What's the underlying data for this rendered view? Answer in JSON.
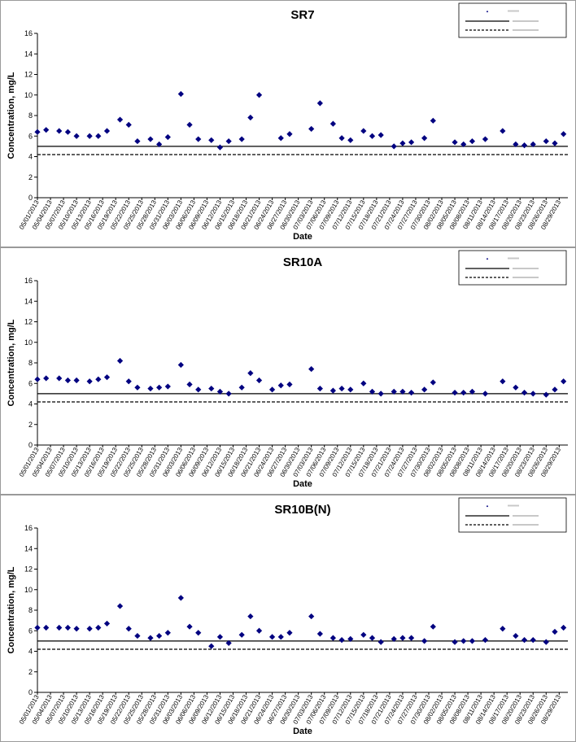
{
  "chart_data": [
    {
      "type": "scatter",
      "title": "SR7",
      "xlabel": "Date",
      "ylabel": "Concentration, mg/L",
      "ylim": [
        0,
        16
      ],
      "yticks": [
        "0",
        "2",
        "4",
        "6",
        "8",
        "10",
        "12",
        "14",
        "16"
      ],
      "xlim": [
        "05/01/2013",
        "08/31/2013"
      ],
      "xticks": [
        "05/01/2013",
        "05/04/2013",
        "05/07/2013",
        "05/10/2013",
        "05/13/2013",
        "05/16/2013",
        "05/19/2013",
        "05/22/2013",
        "05/25/2013",
        "05/28/2013",
        "05/31/2013",
        "06/03/2013",
        "06/06/2013",
        "06/09/2013",
        "06/12/2013",
        "06/15/2013",
        "06/18/2013",
        "06/21/2013",
        "06/24/2013",
        "06/27/2013",
        "06/30/2013",
        "07/03/2013",
        "07/06/2013",
        "07/09/2013",
        "07/12/2013",
        "07/15/2013",
        "07/18/2013",
        "07/21/2013",
        "07/24/2013",
        "07/27/2013",
        "07/30/2013",
        "08/02/2013",
        "08/05/2013",
        "08/08/2013",
        "08/11/2013",
        "08/14/2013",
        "08/17/2013",
        "08/20/2013",
        "08/23/2013",
        "08/26/2013",
        "08/29/2013"
      ],
      "grid": false,
      "legend_position": "top-right",
      "marker_color": "#000080",
      "reference_lines": [
        {
          "y": 5.0,
          "style": "solid"
        },
        {
          "y": 4.2,
          "style": "dashed"
        }
      ],
      "points": [
        {
          "x": "05/01/2013",
          "y": 6.4
        },
        {
          "x": "05/03/2013",
          "y": 6.6
        },
        {
          "x": "05/06/2013",
          "y": 6.5
        },
        {
          "x": "05/08/2013",
          "y": 6.4
        },
        {
          "x": "05/10/2013",
          "y": 6.0
        },
        {
          "x": "05/13/2013",
          "y": 6.0
        },
        {
          "x": "05/15/2013",
          "y": 6.0
        },
        {
          "x": "05/17/2013",
          "y": 6.5
        },
        {
          "x": "05/20/2013",
          "y": 7.6
        },
        {
          "x": "05/22/2013",
          "y": 7.1
        },
        {
          "x": "05/24/2013",
          "y": 5.5
        },
        {
          "x": "05/27/2013",
          "y": 5.7
        },
        {
          "x": "05/29/2013",
          "y": 5.2
        },
        {
          "x": "05/31/2013",
          "y": 5.9
        },
        {
          "x": "06/03/2013",
          "y": 10.1
        },
        {
          "x": "06/05/2013",
          "y": 7.1
        },
        {
          "x": "06/07/2013",
          "y": 5.7
        },
        {
          "x": "06/10/2013",
          "y": 5.6
        },
        {
          "x": "06/12/2013",
          "y": 4.9
        },
        {
          "x": "06/14/2013",
          "y": 5.5
        },
        {
          "x": "06/17/2013",
          "y": 5.7
        },
        {
          "x": "06/19/2013",
          "y": 7.8
        },
        {
          "x": "06/21/2013",
          "y": 10.0
        },
        {
          "x": "06/26/2013",
          "y": 5.8
        },
        {
          "x": "06/28/2013",
          "y": 6.2
        },
        {
          "x": "07/03/2013",
          "y": 6.7
        },
        {
          "x": "07/05/2013",
          "y": 9.2
        },
        {
          "x": "07/08/2013",
          "y": 7.2
        },
        {
          "x": "07/10/2013",
          "y": 5.8
        },
        {
          "x": "07/12/2013",
          "y": 5.6
        },
        {
          "x": "07/15/2013",
          "y": 6.5
        },
        {
          "x": "07/17/2013",
          "y": 6.0
        },
        {
          "x": "07/19/2013",
          "y": 6.1
        },
        {
          "x": "07/22/2013",
          "y": 5.0
        },
        {
          "x": "07/24/2013",
          "y": 5.3
        },
        {
          "x": "07/26/2013",
          "y": 5.4
        },
        {
          "x": "07/29/2013",
          "y": 5.8
        },
        {
          "x": "07/31/2013",
          "y": 7.5
        },
        {
          "x": "08/05/2013",
          "y": 5.4
        },
        {
          "x": "08/07/2013",
          "y": 5.2
        },
        {
          "x": "08/09/2013",
          "y": 5.5
        },
        {
          "x": "08/12/2013",
          "y": 5.7
        },
        {
          "x": "08/16/2013",
          "y": 6.5
        },
        {
          "x": "08/19/2013",
          "y": 5.2
        },
        {
          "x": "08/21/2013",
          "y": 5.1
        },
        {
          "x": "08/23/2013",
          "y": 5.2
        },
        {
          "x": "08/26/2013",
          "y": 5.5
        },
        {
          "x": "08/28/2013",
          "y": 5.3
        },
        {
          "x": "08/30/2013",
          "y": 6.2
        }
      ]
    },
    {
      "type": "scatter",
      "title": "SR10A",
      "xlabel": "Date",
      "ylabel": "Concentration, mg/L",
      "ylim": [
        0,
        16
      ],
      "yticks": [
        "0",
        "2",
        "4",
        "6",
        "8",
        "10",
        "12",
        "14",
        "16"
      ],
      "xlim": [
        "05/01/2013",
        "08/31/2013"
      ],
      "xticks": [
        "05/01/2013",
        "05/04/2013",
        "05/07/2013",
        "05/10/2013",
        "05/13/2013",
        "05/16/2013",
        "05/19/2013",
        "05/22/2013",
        "05/25/2013",
        "05/28/2013",
        "05/31/2013",
        "06/03/2013",
        "06/06/2013",
        "06/09/2013",
        "06/12/2013",
        "06/15/2013",
        "06/18/2013",
        "06/21/2013",
        "06/24/2013",
        "06/27/2013",
        "06/30/2013",
        "07/03/2013",
        "07/06/2013",
        "07/09/2013",
        "07/12/2013",
        "07/15/2013",
        "07/18/2013",
        "07/21/2013",
        "07/24/2013",
        "07/27/2013",
        "07/30/2013",
        "08/02/2013",
        "08/05/2013",
        "08/08/2013",
        "08/11/2013",
        "08/14/2013",
        "08/17/2013",
        "08/20/2013",
        "08/23/2013",
        "08/26/2013",
        "08/29/2013"
      ],
      "grid": false,
      "legend_position": "top-right",
      "marker_color": "#000080",
      "reference_lines": [
        {
          "y": 5.0,
          "style": "solid"
        },
        {
          "y": 4.2,
          "style": "dashed"
        }
      ],
      "points": [
        {
          "x": "05/01/2013",
          "y": 6.4
        },
        {
          "x": "05/03/2013",
          "y": 6.5
        },
        {
          "x": "05/06/2013",
          "y": 6.5
        },
        {
          "x": "05/08/2013",
          "y": 6.3
        },
        {
          "x": "05/10/2013",
          "y": 6.3
        },
        {
          "x": "05/13/2013",
          "y": 6.2
        },
        {
          "x": "05/15/2013",
          "y": 6.4
        },
        {
          "x": "05/17/2013",
          "y": 6.6
        },
        {
          "x": "05/20/2013",
          "y": 8.2
        },
        {
          "x": "05/22/2013",
          "y": 6.2
        },
        {
          "x": "05/24/2013",
          "y": 5.6
        },
        {
          "x": "05/27/2013",
          "y": 5.5
        },
        {
          "x": "05/29/2013",
          "y": 5.6
        },
        {
          "x": "05/31/2013",
          "y": 5.7
        },
        {
          "x": "06/03/2013",
          "y": 7.8
        },
        {
          "x": "06/05/2013",
          "y": 5.9
        },
        {
          "x": "06/07/2013",
          "y": 5.4
        },
        {
          "x": "06/10/2013",
          "y": 5.5
        },
        {
          "x": "06/12/2013",
          "y": 5.2
        },
        {
          "x": "06/14/2013",
          "y": 5.0
        },
        {
          "x": "06/17/2013",
          "y": 5.6
        },
        {
          "x": "06/19/2013",
          "y": 7.0
        },
        {
          "x": "06/21/2013",
          "y": 6.3
        },
        {
          "x": "06/24/2013",
          "y": 5.4
        },
        {
          "x": "06/26/2013",
          "y": 5.8
        },
        {
          "x": "06/28/2013",
          "y": 5.9
        },
        {
          "x": "07/03/2013",
          "y": 7.4
        },
        {
          "x": "07/05/2013",
          "y": 5.5
        },
        {
          "x": "07/08/2013",
          "y": 5.3
        },
        {
          "x": "07/10/2013",
          "y": 5.5
        },
        {
          "x": "07/12/2013",
          "y": 5.4
        },
        {
          "x": "07/15/2013",
          "y": 6.0
        },
        {
          "x": "07/17/2013",
          "y": 5.2
        },
        {
          "x": "07/19/2013",
          "y": 5.0
        },
        {
          "x": "07/22/2013",
          "y": 5.2
        },
        {
          "x": "07/24/2013",
          "y": 5.2
        },
        {
          "x": "07/26/2013",
          "y": 5.1
        },
        {
          "x": "07/29/2013",
          "y": 5.4
        },
        {
          "x": "07/31/2013",
          "y": 6.1
        },
        {
          "x": "08/05/2013",
          "y": 5.1
        },
        {
          "x": "08/07/2013",
          "y": 5.1
        },
        {
          "x": "08/09/2013",
          "y": 5.2
        },
        {
          "x": "08/12/2013",
          "y": 5.0
        },
        {
          "x": "08/16/2013",
          "y": 6.2
        },
        {
          "x": "08/19/2013",
          "y": 5.6
        },
        {
          "x": "08/21/2013",
          "y": 5.1
        },
        {
          "x": "08/23/2013",
          "y": 5.0
        },
        {
          "x": "08/26/2013",
          "y": 4.9
        },
        {
          "x": "08/28/2013",
          "y": 5.4
        },
        {
          "x": "08/30/2013",
          "y": 6.2
        }
      ]
    },
    {
      "type": "scatter",
      "title": "SR10B(N)",
      "xlabel": "Date",
      "ylabel": "Concentration, mg/L",
      "ylim": [
        0,
        16
      ],
      "yticks": [
        "0",
        "2",
        "4",
        "6",
        "8",
        "10",
        "12",
        "14",
        "16"
      ],
      "xlim": [
        "05/01/2013",
        "08/31/2013"
      ],
      "xticks": [
        "05/01/2013",
        "05/04/2013",
        "05/07/2013",
        "05/10/2013",
        "05/13/2013",
        "05/16/2013",
        "05/19/2013",
        "05/22/2013",
        "05/25/2013",
        "05/28/2013",
        "05/31/2013",
        "06/03/2013",
        "06/06/2013",
        "06/09/2013",
        "06/12/2013",
        "06/15/2013",
        "06/18/2013",
        "06/21/2013",
        "06/24/2013",
        "06/27/2013",
        "06/30/2013",
        "07/03/2013",
        "07/06/2013",
        "07/09/2013",
        "07/12/2013",
        "07/15/2013",
        "07/18/2013",
        "07/21/2013",
        "07/24/2013",
        "07/27/2013",
        "07/30/2013",
        "08/02/2013",
        "08/05/2013",
        "08/08/2013",
        "08/11/2013",
        "08/14/2013",
        "08/17/2013",
        "08/20/2013",
        "08/23/2013",
        "08/26/2013",
        "08/29/2013"
      ],
      "grid": false,
      "legend_position": "top-right",
      "marker_color": "#000080",
      "reference_lines": [
        {
          "y": 5.0,
          "style": "solid"
        },
        {
          "y": 4.2,
          "style": "dashed"
        }
      ],
      "points": [
        {
          "x": "05/01/2013",
          "y": 6.3
        },
        {
          "x": "05/03/2013",
          "y": 6.3
        },
        {
          "x": "05/06/2013",
          "y": 6.3
        },
        {
          "x": "05/08/2013",
          "y": 6.3
        },
        {
          "x": "05/10/2013",
          "y": 6.2
        },
        {
          "x": "05/13/2013",
          "y": 6.2
        },
        {
          "x": "05/15/2013",
          "y": 6.3
        },
        {
          "x": "05/17/2013",
          "y": 6.7
        },
        {
          "x": "05/20/2013",
          "y": 8.4
        },
        {
          "x": "05/22/2013",
          "y": 6.2
        },
        {
          "x": "05/24/2013",
          "y": 5.5
        },
        {
          "x": "05/27/2013",
          "y": 5.3
        },
        {
          "x": "05/29/2013",
          "y": 5.5
        },
        {
          "x": "05/31/2013",
          "y": 5.8
        },
        {
          "x": "06/03/2013",
          "y": 9.2
        },
        {
          "x": "06/05/2013",
          "y": 6.4
        },
        {
          "x": "06/07/2013",
          "y": 5.8
        },
        {
          "x": "06/10/2013",
          "y": 4.5
        },
        {
          "x": "06/12/2013",
          "y": 5.4
        },
        {
          "x": "06/14/2013",
          "y": 4.8
        },
        {
          "x": "06/17/2013",
          "y": 5.6
        },
        {
          "x": "06/19/2013",
          "y": 7.4
        },
        {
          "x": "06/21/2013",
          "y": 6.0
        },
        {
          "x": "06/24/2013",
          "y": 5.4
        },
        {
          "x": "06/26/2013",
          "y": 5.4
        },
        {
          "x": "06/28/2013",
          "y": 5.8
        },
        {
          "x": "07/03/2013",
          "y": 7.4
        },
        {
          "x": "07/05/2013",
          "y": 5.7
        },
        {
          "x": "07/08/2013",
          "y": 5.3
        },
        {
          "x": "07/10/2013",
          "y": 5.1
        },
        {
          "x": "07/12/2013",
          "y": 5.2
        },
        {
          "x": "07/15/2013",
          "y": 5.6
        },
        {
          "x": "07/17/2013",
          "y": 5.3
        },
        {
          "x": "07/19/2013",
          "y": 4.9
        },
        {
          "x": "07/22/2013",
          "y": 5.2
        },
        {
          "x": "07/24/2013",
          "y": 5.3
        },
        {
          "x": "07/26/2013",
          "y": 5.3
        },
        {
          "x": "07/29/2013",
          "y": 5.0
        },
        {
          "x": "07/31/2013",
          "y": 6.4
        },
        {
          "x": "08/05/2013",
          "y": 4.9
        },
        {
          "x": "08/07/2013",
          "y": 5.0
        },
        {
          "x": "08/09/2013",
          "y": 5.0
        },
        {
          "x": "08/12/2013",
          "y": 5.1
        },
        {
          "x": "08/16/2013",
          "y": 6.2
        },
        {
          "x": "08/19/2013",
          "y": 5.5
        },
        {
          "x": "08/21/2013",
          "y": 5.1
        },
        {
          "x": "08/23/2013",
          "y": 5.1
        },
        {
          "x": "08/26/2013",
          "y": 4.9
        },
        {
          "x": "08/28/2013",
          "y": 5.9
        },
        {
          "x": "08/30/2013",
          "y": 6.3
        }
      ]
    }
  ]
}
